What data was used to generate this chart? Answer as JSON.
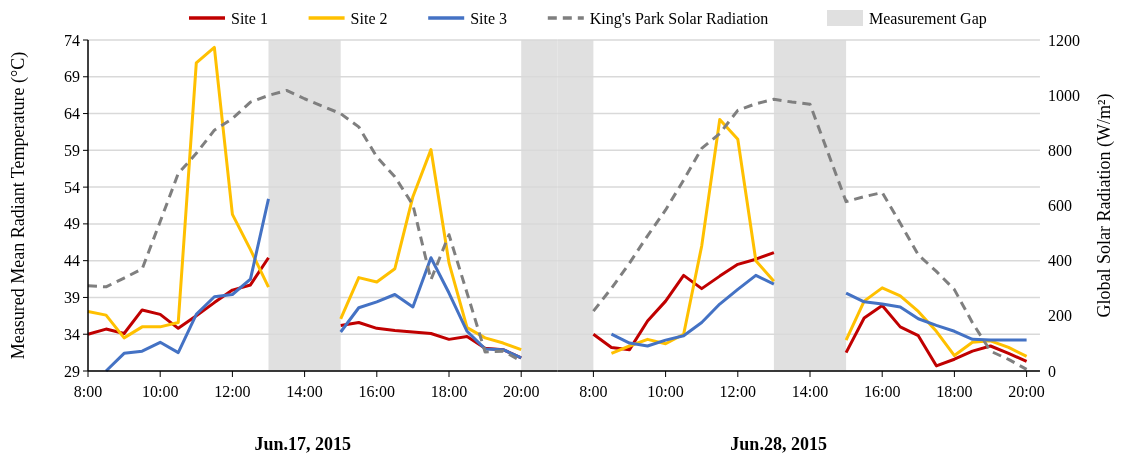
{
  "chart_data": [
    {
      "type": "line",
      "ylabel": "Measured Mean Radiant Temperature (°C)",
      "annotations": [
        "Jun.17, 2015"
      ],
      "x": [
        8,
        8.5,
        9,
        9.5,
        10,
        10.5,
        11,
        11.5,
        12,
        12.5,
        13,
        13.5,
        14,
        14.5,
        15,
        15.5,
        16,
        16.5,
        17,
        17.5,
        18,
        18.5,
        19,
        19.5,
        20
      ],
      "series": [
        {
          "name": "Site 1",
          "color": "#c00000",
          "line_style": "solid",
          "values": [
            34.0,
            34.7,
            34.1,
            37.3,
            36.7,
            34.8,
            36.5,
            38.3,
            40.0,
            40.7,
            44.4,
            null,
            null,
            null,
            35.2,
            35.6,
            34.8,
            34.5,
            34.3,
            34.1,
            33.3,
            33.7,
            32.1,
            31.9,
            30.8
          ]
        },
        {
          "name": "Site 2",
          "color": "#ffc000",
          "line_style": "solid",
          "values": [
            37.1,
            36.6,
            33.5,
            35.0,
            35.0,
            35.6,
            70.9,
            73.0,
            50.3,
            45.5,
            40.4,
            null,
            null,
            null,
            36.1,
            41.7,
            41.1,
            42.9,
            52.7,
            59.1,
            43.7,
            34.9,
            33.5,
            32.8,
            31.9
          ]
        },
        {
          "name": "Site 3",
          "color": "#4472c4",
          "line_style": "solid",
          "values": [
            null,
            29.0,
            31.4,
            31.7,
            32.9,
            31.5,
            36.7,
            39.1,
            39.4,
            41.5,
            52.4,
            null,
            null,
            null,
            34.3,
            37.6,
            38.4,
            39.4,
            37.7,
            44.4,
            39.6,
            34.4,
            32.0,
            31.9,
            30.8
          ]
        },
        {
          "name": "King's Park Solar Radiation",
          "color": "#7f7f7f",
          "line_style": "dashed",
          "axis": "y2",
          "values": [
            309,
            305,
            337,
            370,
            542,
            716,
            789,
            873,
            915,
            975,
            999,
            1017,
            987,
            960,
            933,
            885,
            776,
            704,
            602,
            331,
            494,
            283,
            69,
            72,
            36
          ]
        }
      ],
      "bands": [
        {
          "axis": "x",
          "from": 13,
          "to": 15,
          "label": "Measurement Gap",
          "color": "#e0e0e0"
        },
        {
          "axis": "x",
          "from": 20,
          "to": 21,
          "color": "#e0e0e0"
        }
      ],
      "xlim": [
        8,
        21
      ],
      "xticks": [
        {
          "value": 8,
          "label": "8:00"
        },
        {
          "value": 10,
          "label": "10:00"
        },
        {
          "value": 12,
          "label": "12:00"
        },
        {
          "value": 14,
          "label": "14:00"
        },
        {
          "value": 16,
          "label": "16:00"
        },
        {
          "value": 18,
          "label": "18:00"
        },
        {
          "value": 20,
          "label": "20:00"
        }
      ],
      "ylim": [
        29,
        74
      ],
      "yticks": [
        29,
        34,
        39,
        44,
        49,
        54,
        59,
        64,
        69,
        74
      ],
      "y2lim": [
        0,
        1200
      ],
      "tick_labels": [
        "x",
        "y"
      ],
      "grid": "y",
      "legend": "top"
    },
    {
      "type": "line",
      "y2label": "Global Solar Radiation (W/m²)",
      "annotations": [
        "Jun.28, 2015"
      ],
      "x": [
        8,
        8.5,
        9,
        9.5,
        10,
        10.5,
        11,
        11.5,
        12,
        12.5,
        13,
        13.5,
        14,
        14.5,
        15,
        15.5,
        16,
        16.5,
        17,
        17.5,
        18,
        18.5,
        19,
        19.5,
        20
      ],
      "series": [
        {
          "name": "Site 1",
          "color": "#c00000",
          "line_style": "solid",
          "values": [
            34.0,
            32.2,
            31.9,
            35.8,
            38.5,
            42.0,
            40.2,
            41.9,
            43.5,
            44.2,
            45.1,
            null,
            null,
            null,
            31.5,
            36.2,
            37.9,
            35.0,
            33.8,
            29.7,
            30.6,
            31.7,
            32.4,
            31.4,
            30.3
          ]
        },
        {
          "name": "Site 2",
          "color": "#ffc000",
          "line_style": "solid",
          "values": [
            null,
            31.4,
            32.4,
            33.3,
            32.7,
            34.0,
            46.0,
            63.2,
            60.5,
            44.0,
            41.2,
            null,
            null,
            null,
            33.2,
            38.5,
            40.3,
            39.2,
            37.1,
            34.4,
            31.1,
            32.9,
            33.1,
            32.2,
            31.0
          ]
        },
        {
          "name": "Site 3",
          "color": "#4472c4",
          "line_style": "solid",
          "values": [
            null,
            34.0,
            32.8,
            32.4,
            33.2,
            33.8,
            35.6,
            38.1,
            40.1,
            42.0,
            40.8,
            null,
            null,
            null,
            39.6,
            38.4,
            38.1,
            37.7,
            36.1,
            35.2,
            34.4,
            33.3,
            33.2,
            33.2,
            33.2
          ]
        },
        {
          "name": "King's Park Solar Radiation",
          "color": "#7f7f7f",
          "line_style": "dashed",
          "axis": "y2",
          "values": [
            217,
            300,
            391,
            490,
            584,
            692,
            807,
            861,
            945,
            969,
            985,
            975,
            967,
            791,
            614,
            632,
            647,
            536,
            421,
            361,
            295,
            175,
            72,
            42,
            6
          ]
        }
      ],
      "bands": [
        {
          "axis": "x",
          "from": 7,
          "to": 8,
          "color": "#e0e0e0"
        },
        {
          "axis": "x",
          "from": 13,
          "to": 15,
          "color": "#e0e0e0"
        }
      ],
      "xlim": [
        7,
        20.37
      ],
      "xticks": [
        {
          "value": 8,
          "label": "8:00"
        },
        {
          "value": 10,
          "label": "10:00"
        },
        {
          "value": 12,
          "label": "12:00"
        },
        {
          "value": 14,
          "label": "14:00"
        },
        {
          "value": 16,
          "label": "16:00"
        },
        {
          "value": 18,
          "label": "18:00"
        },
        {
          "value": 20,
          "label": "20:00"
        }
      ],
      "ylim": [
        29,
        74
      ],
      "y2lim": [
        0,
        1200
      ],
      "y2ticks": [
        0,
        200,
        400,
        600,
        800,
        1000,
        1200
      ],
      "tick_labels": [
        "x",
        "y2"
      ],
      "grid": "y"
    }
  ]
}
